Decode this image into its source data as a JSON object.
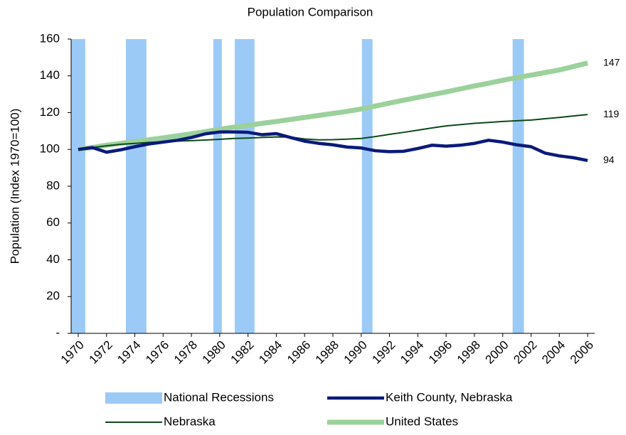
{
  "chart_data": {
    "type": "line",
    "title": "Population Comparison",
    "y_label": "Population (Index 1970=100)",
    "x": [
      1970,
      1971,
      1972,
      1973,
      1974,
      1975,
      1976,
      1977,
      1978,
      1979,
      1980,
      1981,
      1982,
      1983,
      1984,
      1985,
      1986,
      1987,
      1988,
      1989,
      1990,
      1991,
      1992,
      1993,
      1994,
      1995,
      1996,
      1997,
      1998,
      1999,
      2000,
      2001,
      2002,
      2003,
      2004,
      2005,
      2006
    ],
    "xlim": [
      1969.5,
      2006.5
    ],
    "xticks": [
      1970,
      1972,
      1974,
      1976,
      1978,
      1980,
      1982,
      1984,
      1986,
      1988,
      1990,
      1992,
      1994,
      1996,
      1998,
      2000,
      2002,
      2004,
      2006
    ],
    "ylim": [
      0,
      160
    ],
    "yticks": [
      {
        "value": 0,
        "label": "-"
      },
      20,
      40,
      60,
      80,
      100,
      120,
      140,
      160
    ],
    "grid": false,
    "recessions": {
      "name": "National Recessions",
      "color": "#9ccaf7",
      "spans": [
        [
          1969.5,
          1970.5
        ],
        [
          1973.37,
          1974.82
        ],
        [
          1979.55,
          1980.15
        ],
        [
          1981.06,
          1982.46
        ],
        [
          1990.05,
          1990.8
        ],
        [
          2000.7,
          2001.5
        ]
      ],
      "values": [
        160,
        160,
        160,
        160,
        160,
        160
      ]
    },
    "series": [
      {
        "name": "United States",
        "color": "#9bd19b",
        "width": 7,
        "values": [
          100,
          101.1,
          102.3,
          103.3,
          104.3,
          105.3,
          106.3,
          107.4,
          108.5,
          109.7,
          111,
          112.1,
          113.1,
          114.2,
          115.2,
          116.3,
          117.4,
          118.5,
          119.6,
          120.7,
          122,
          123.6,
          125.2,
          126.8,
          128.3,
          129.8,
          131.3,
          132.9,
          134.5,
          136,
          137.6,
          139,
          140.4,
          141.8,
          143.2,
          145.1,
          147
        ]
      },
      {
        "name": "Nebraska",
        "color": "#0d4a1a",
        "width": 2,
        "values": [
          100,
          101,
          102,
          102.8,
          103.3,
          103.8,
          104.2,
          104.5,
          104.8,
          105.1,
          105.5,
          106,
          106.2,
          106.5,
          106.8,
          106.7,
          105.7,
          105.2,
          105.3,
          105.6,
          106,
          107,
          108.2,
          109.3,
          110.5,
          111.7,
          112.8,
          113.5,
          114.2,
          114.7,
          115.2,
          115.6,
          116,
          116.7,
          117.4,
          118.2,
          119
        ]
      },
      {
        "name": "Keith County, Nebraska",
        "color": "#0a1a7a",
        "width": 4.5,
        "values": [
          100,
          101,
          98.5,
          99.8,
          101.5,
          103,
          104,
          105,
          106.5,
          108.5,
          109.5,
          109.5,
          109.3,
          108,
          108.6,
          106.5,
          104.5,
          103.3,
          102.5,
          101.3,
          100.8,
          99.3,
          98.8,
          99,
          100.5,
          102.3,
          101.8,
          102.3,
          103.3,
          105,
          104,
          102.5,
          101.5,
          98,
          96.5,
          95.5,
          94
        ]
      }
    ]
  }
}
